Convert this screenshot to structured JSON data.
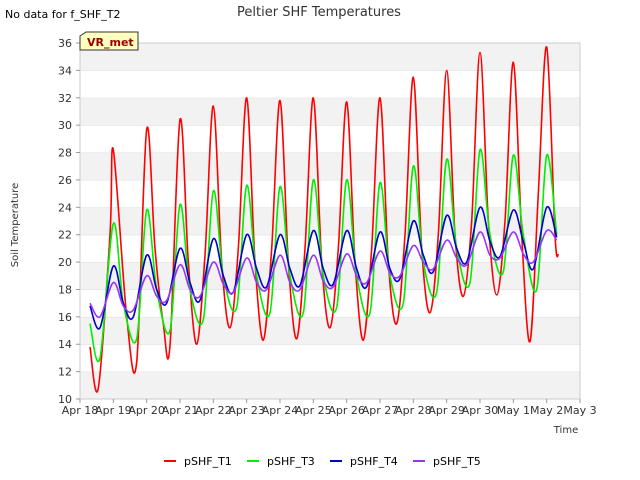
{
  "header": {
    "no_data_note": "No data for f_SHF_T2",
    "badge": "VR_met"
  },
  "chart_data": {
    "type": "line",
    "title": "Peltier SHF Temperatures",
    "xlabel": "Time",
    "ylabel": "Soil Temperature",
    "ylim": [
      10,
      36
    ],
    "yticks": [
      10,
      12,
      14,
      16,
      18,
      20,
      22,
      24,
      26,
      28,
      30,
      32,
      34,
      36
    ],
    "xlim_days": [
      0,
      15
    ],
    "xtick_labels": [
      "Apr 18",
      "Apr 19",
      "Apr 20",
      "Apr 21",
      "Apr 22",
      "Apr 23",
      "Apr 24",
      "Apr 25",
      "Apr 26",
      "Apr 27",
      "Apr 28",
      "Apr 29",
      "Apr 30",
      "May 1",
      "May 2",
      "May 3"
    ],
    "grid": "horizontal bands",
    "legend_position": "bottom",
    "series": [
      {
        "name": "pSHF_T1",
        "color": "#ff0000",
        "x": [
          0.3,
          0.55,
          0.9,
          1.0,
          1.4,
          1.7,
          2.0,
          2.25,
          2.5,
          2.7,
          3.0,
          3.25,
          3.5,
          3.75,
          4.0,
          4.25,
          4.5,
          4.75,
          5.0,
          5.25,
          5.5,
          5.75,
          6.0,
          6.25,
          6.5,
          6.75,
          7.0,
          7.25,
          7.5,
          7.75,
          8.0,
          8.25,
          8.5,
          8.75,
          9.0,
          9.25,
          9.5,
          9.75,
          10.0,
          10.25,
          10.5,
          10.75,
          11.0,
          11.25,
          11.5,
          11.75,
          12.0,
          12.25,
          12.5,
          12.75,
          13.0,
          13.25,
          13.5,
          13.75,
          14.0,
          14.25,
          14.35
        ],
        "y": [
          13.8,
          10.8,
          22.0,
          28.2,
          16.0,
          12.7,
          29.7,
          21.0,
          15.5,
          13.9,
          30.4,
          20.0,
          14.0,
          20.5,
          31.4,
          20.0,
          15.2,
          21.0,
          32.0,
          20.0,
          14.3,
          21.0,
          31.8,
          20.0,
          14.4,
          21.0,
          32.0,
          20.0,
          15.2,
          21.0,
          31.7,
          20.0,
          14.3,
          21.0,
          32.0,
          20.0,
          15.5,
          22.0,
          33.5,
          21.0,
          16.3,
          22.0,
          34.0,
          22.0,
          17.5,
          23.0,
          35.3,
          23.0,
          17.6,
          23.0,
          34.6,
          22.0,
          14.2,
          25.0,
          35.7,
          22.0,
          20.5
        ]
      },
      {
        "name": "pSHF_T3",
        "color": "#00ee00",
        "x": [
          0.3,
          0.6,
          1.0,
          1.3,
          1.7,
          2.0,
          2.3,
          2.7,
          3.0,
          3.3,
          3.7,
          4.0,
          4.3,
          4.7,
          5.0,
          5.3,
          5.7,
          6.0,
          6.3,
          6.7,
          7.0,
          7.3,
          7.7,
          8.0,
          8.3,
          8.7,
          9.0,
          9.3,
          9.7,
          10.0,
          10.3,
          10.7,
          11.0,
          11.3,
          11.7,
          12.0,
          12.3,
          12.7,
          13.0,
          13.3,
          13.7,
          14.0,
          14.3
        ],
        "y": [
          15.5,
          13.0,
          22.8,
          17.0,
          14.4,
          23.8,
          18.0,
          15.0,
          24.2,
          18.0,
          15.8,
          25.2,
          19.0,
          16.7,
          25.6,
          19.0,
          16.3,
          25.5,
          19.0,
          16.3,
          26.0,
          19.0,
          16.7,
          26.0,
          19.0,
          16.3,
          25.8,
          19.0,
          17.0,
          27.0,
          20.0,
          17.8,
          27.5,
          21.0,
          18.5,
          28.2,
          22.0,
          19.3,
          27.8,
          22.0,
          18.0,
          27.8,
          22.0
        ]
      },
      {
        "name": "pSHF_T4",
        "color": "#0000cc",
        "x": [
          0.3,
          0.6,
          1.0,
          1.3,
          1.6,
          2.0,
          2.3,
          2.6,
          3.0,
          3.3,
          3.6,
          4.0,
          4.3,
          4.6,
          5.0,
          5.3,
          5.6,
          6.0,
          6.3,
          6.6,
          7.0,
          7.3,
          7.6,
          8.0,
          8.3,
          8.6,
          9.0,
          9.3,
          9.6,
          10.0,
          10.3,
          10.6,
          11.0,
          11.3,
          11.6,
          12.0,
          12.3,
          12.6,
          13.0,
          13.3,
          13.6,
          14.0,
          14.3
        ],
        "y": [
          16.8,
          15.2,
          19.7,
          17.0,
          16.0,
          20.5,
          18.0,
          17.0,
          21.0,
          18.5,
          17.2,
          21.7,
          19.0,
          17.8,
          22.0,
          19.5,
          18.2,
          22.0,
          19.5,
          18.3,
          22.3,
          19.5,
          18.4,
          22.3,
          19.5,
          18.2,
          22.2,
          19.5,
          18.8,
          23.0,
          20.5,
          19.3,
          23.4,
          21.0,
          20.0,
          24.0,
          21.5,
          20.4,
          23.8,
          21.5,
          19.5,
          24.0,
          21.8
        ]
      },
      {
        "name": "pSHF_T5",
        "color": "#9933ff",
        "x": [
          0.3,
          0.6,
          1.0,
          1.3,
          1.6,
          2.0,
          2.3,
          2.6,
          3.0,
          3.3,
          3.6,
          4.0,
          4.3,
          4.6,
          5.0,
          5.3,
          5.6,
          6.0,
          6.3,
          6.6,
          7.0,
          7.3,
          7.6,
          8.0,
          8.3,
          8.6,
          9.0,
          9.3,
          9.6,
          10.0,
          10.3,
          10.6,
          11.0,
          11.3,
          11.6,
          12.0,
          12.3,
          12.6,
          13.0,
          13.3,
          13.6,
          14.0,
          14.3
        ],
        "y": [
          17.0,
          16.0,
          18.5,
          16.8,
          16.5,
          19.0,
          17.5,
          17.2,
          19.8,
          18.0,
          17.5,
          20.0,
          18.4,
          17.8,
          20.3,
          18.5,
          18.0,
          20.5,
          18.5,
          18.0,
          20.5,
          18.6,
          18.2,
          20.6,
          19.0,
          18.5,
          20.8,
          19.2,
          19.0,
          21.2,
          20.0,
          19.5,
          21.6,
          20.3,
          19.8,
          22.2,
          20.5,
          20.3,
          22.2,
          20.6,
          20.0,
          22.3,
          21.6
        ]
      }
    ]
  }
}
